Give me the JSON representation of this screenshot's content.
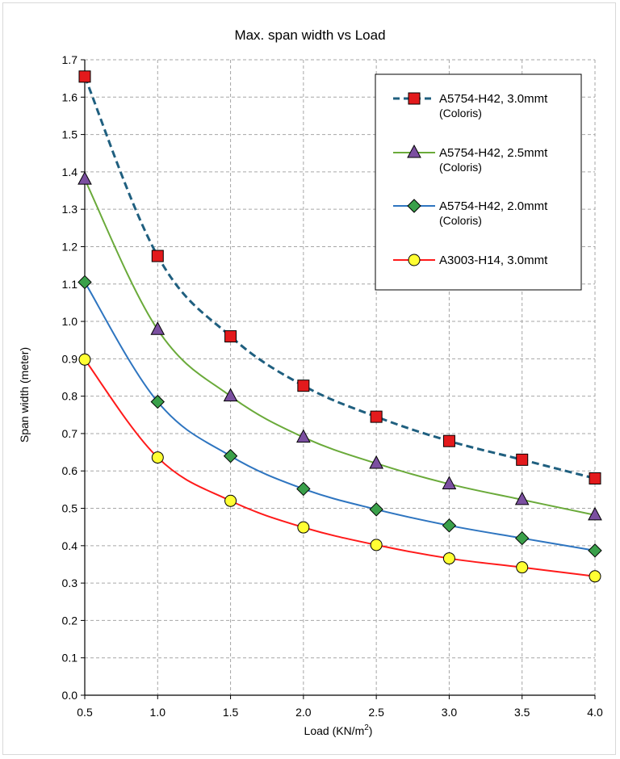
{
  "chart_data": {
    "type": "line",
    "title": "Max. span width vs Load",
    "xlabel": "Load (KN/m",
    "xlabel_sup": "2",
    "xlabel_end": ")",
    "ylabel": "Span width (meter)",
    "x": [
      0.5,
      1.0,
      1.5,
      2.0,
      2.5,
      3.0,
      3.5,
      4.0
    ],
    "xticks": [
      "0.5",
      "1.0",
      "1.5",
      "2.0",
      "2.5",
      "3.0",
      "3.5",
      "4.0"
    ],
    "xlim": [
      0.5,
      4.0
    ],
    "ylim": [
      0.0,
      1.7
    ],
    "yticks": [
      "0.0",
      "0.1",
      "0.2",
      "0.3",
      "0.4",
      "0.5",
      "0.6",
      "0.7",
      "0.8",
      "0.9",
      "1.0",
      "1.1",
      "1.2",
      "1.3",
      "1.4",
      "1.5",
      "1.6",
      "1.7"
    ],
    "grid": true,
    "grid_style": "dashed",
    "legend_position": "top-right",
    "series": [
      {
        "name": "A5754-H42, 3.0mmt",
        "subname": "(Coloris)",
        "values": [
          1.655,
          1.175,
          0.96,
          0.828,
          0.745,
          0.68,
          0.63,
          0.58
        ],
        "line_color": "#1f5f7f",
        "line_style": "dashed",
        "marker": "square",
        "marker_color": "#e31a1c"
      },
      {
        "name": "A5754-H42, 2.5mmt",
        "subname": "(Coloris)",
        "values": [
          1.38,
          0.978,
          0.8,
          0.69,
          0.62,
          0.565,
          0.523,
          0.482
        ],
        "line_color": "#6aaa3a",
        "line_style": "solid",
        "marker": "triangle",
        "marker_color": "#7b4fa0"
      },
      {
        "name": "A5754-H42, 2.0mmt",
        "subname": "(Coloris)",
        "values": [
          1.105,
          0.785,
          0.64,
          0.552,
          0.497,
          0.454,
          0.42,
          0.387
        ],
        "line_color": "#2e75c0",
        "line_style": "solid",
        "marker": "diamond",
        "marker_color": "#3aa04a"
      },
      {
        "name": "A3003-H14, 3.0mmt",
        "subname": "",
        "values": [
          0.898,
          0.636,
          0.52,
          0.449,
          0.402,
          0.366,
          0.342,
          0.318
        ],
        "line_color": "#ff1a1a",
        "line_style": "solid",
        "marker": "circle",
        "marker_color": "#ffff33"
      }
    ]
  }
}
